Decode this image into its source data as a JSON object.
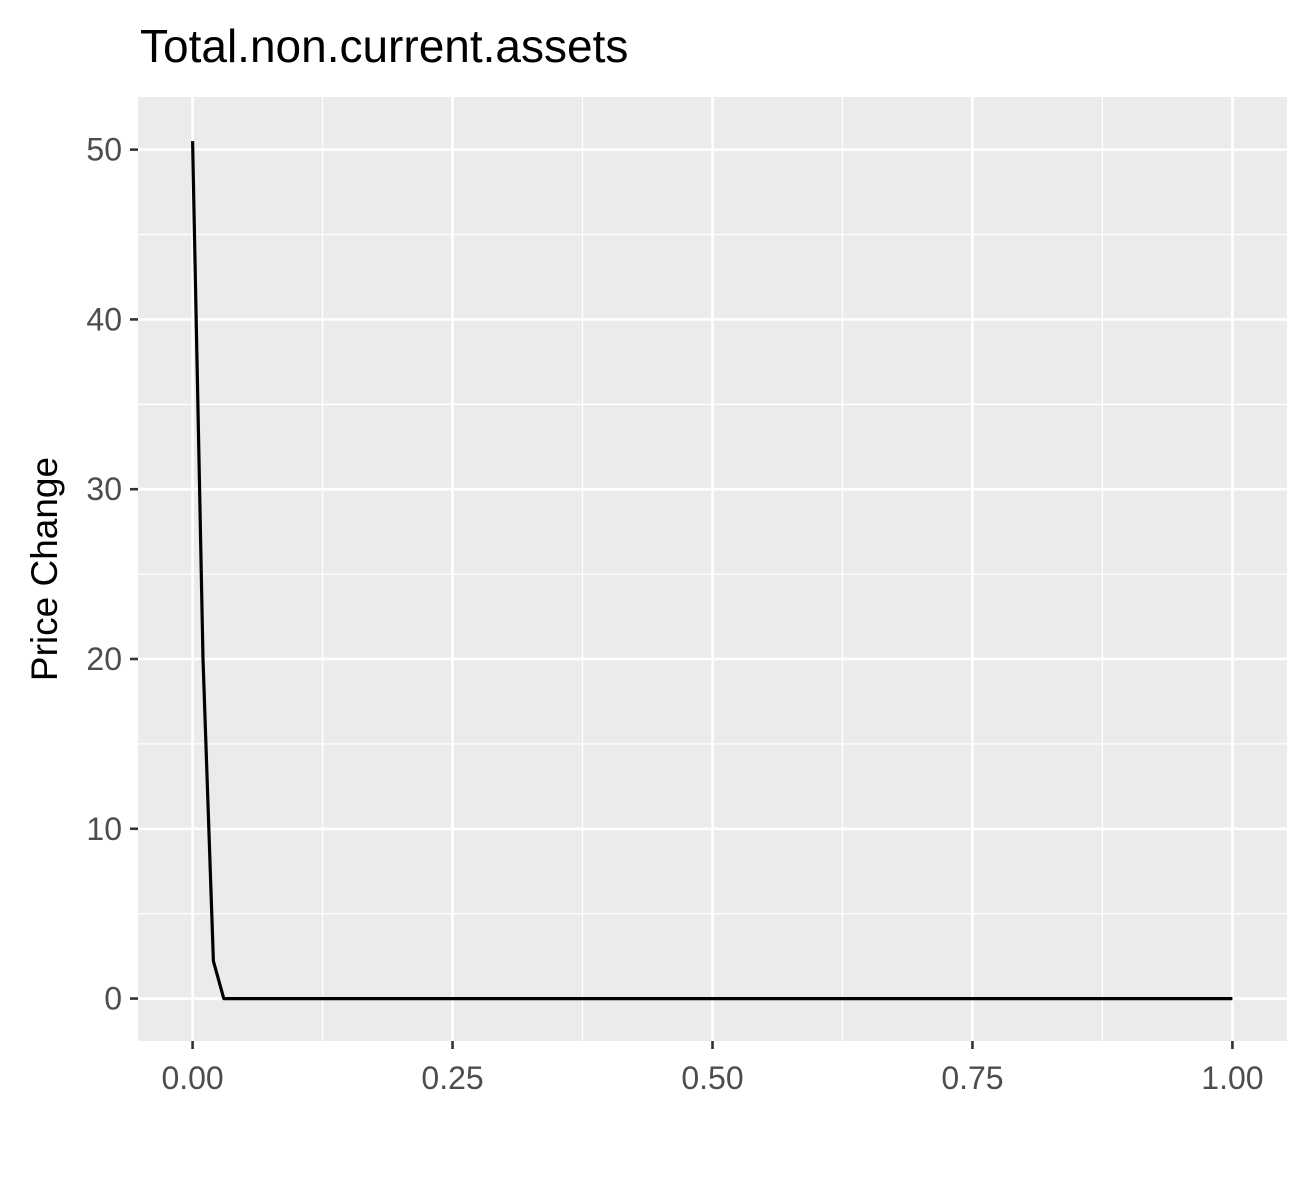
{
  "chart_data": {
    "type": "line",
    "title": "Total.non.current.assets",
    "xlabel": "",
    "ylabel": "Price Change",
    "xlim": [
      -0.0525,
      1.0525
    ],
    "ylim": [
      -2.5,
      53.1
    ],
    "x_ticks": [
      0.0,
      0.25,
      0.5,
      0.75,
      1.0
    ],
    "x_tick_labels": [
      "0.00",
      "0.25",
      "0.50",
      "0.75",
      "1.00"
    ],
    "y_ticks": [
      0,
      10,
      20,
      30,
      40,
      50
    ],
    "y_tick_labels": [
      "0",
      "10",
      "20",
      "30",
      "40",
      "50"
    ],
    "grid": true,
    "legend": "none",
    "colors": {
      "panel": "#ebebeb",
      "grid": "#ffffff",
      "line": "#000000",
      "tick_text": "#4d4d4d"
    },
    "series": [
      {
        "x": [
          0.0,
          0.01,
          0.02,
          0.03,
          0.1,
          0.25,
          0.5,
          0.75,
          1.0
        ],
        "y": [
          50.5,
          20.0,
          2.2,
          0.0,
          0.0,
          0.0,
          0.0,
          0.0,
          0.0
        ]
      }
    ]
  }
}
